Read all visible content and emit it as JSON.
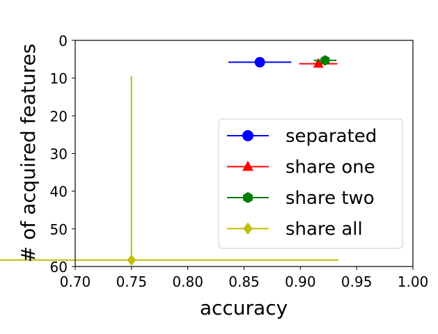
{
  "chart_data": {
    "type": "scatter",
    "title": "",
    "xlabel": "accuracy",
    "ylabel": "# of acquired features",
    "xlim": [
      0.7,
      1.0
    ],
    "ylim": [
      60,
      0
    ],
    "y_inverted": true,
    "grid": false,
    "legend_position": "right",
    "xticks": [
      "0.70",
      "0.75",
      "0.80",
      "0.85",
      "0.90",
      "0.95",
      "1.00"
    ],
    "yticks": [
      "0",
      "10",
      "20",
      "30",
      "40",
      "50",
      "60"
    ],
    "series": [
      {
        "name": "separated",
        "color": "#0000ff",
        "marker": "circle",
        "x": 0.864,
        "y": 5.8,
        "x_err": 0.028
      },
      {
        "name": "share one",
        "color": "#ff0000",
        "marker": "triangle",
        "x": 0.916,
        "y": 6.2,
        "x_err": 0.017
      },
      {
        "name": "share two",
        "color": "#008000",
        "marker": "hexagon",
        "x": 0.922,
        "y": 5.3,
        "x_err": 0.01
      },
      {
        "name": "share all",
        "color": "#bfbf00",
        "marker": "diamond",
        "x": 0.75,
        "y": 58.3,
        "x_err": 0.184,
        "y_err_up": 48.8
      }
    ]
  }
}
